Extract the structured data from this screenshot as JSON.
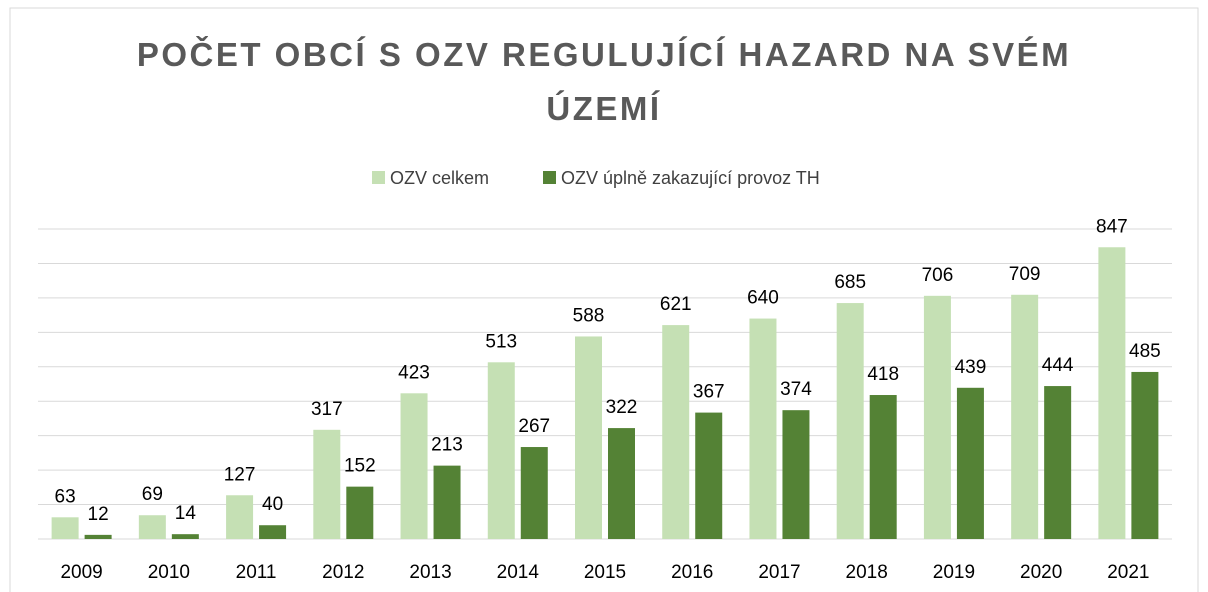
{
  "chart_data": {
    "type": "bar",
    "title": "POČET OBCÍ S OZV REGULUJÍCÍ HAZARD NA SVÉM ÚZEMÍ",
    "categories": [
      "2009",
      "2010",
      "2011",
      "2012",
      "2013",
      "2014",
      "2015",
      "2016",
      "2017",
      "2018",
      "2019",
      "2020",
      "2021"
    ],
    "series": [
      {
        "name": "OZV celkem",
        "color": "#c5e0b4",
        "values": [
          63,
          69,
          127,
          317,
          423,
          513,
          588,
          621,
          640,
          685,
          706,
          709,
          847
        ]
      },
      {
        "name": "OZV úplně zakazující provoz TH",
        "color": "#548235",
        "values": [
          12,
          14,
          40,
          152,
          213,
          267,
          322,
          367,
          374,
          418,
          439,
          444,
          485
        ]
      }
    ],
    "ylim": [
      0,
      900
    ],
    "yticks": [
      0,
      100,
      200,
      300,
      400,
      500,
      600,
      700,
      800,
      900
    ],
    "grid": true,
    "legend": "top"
  }
}
